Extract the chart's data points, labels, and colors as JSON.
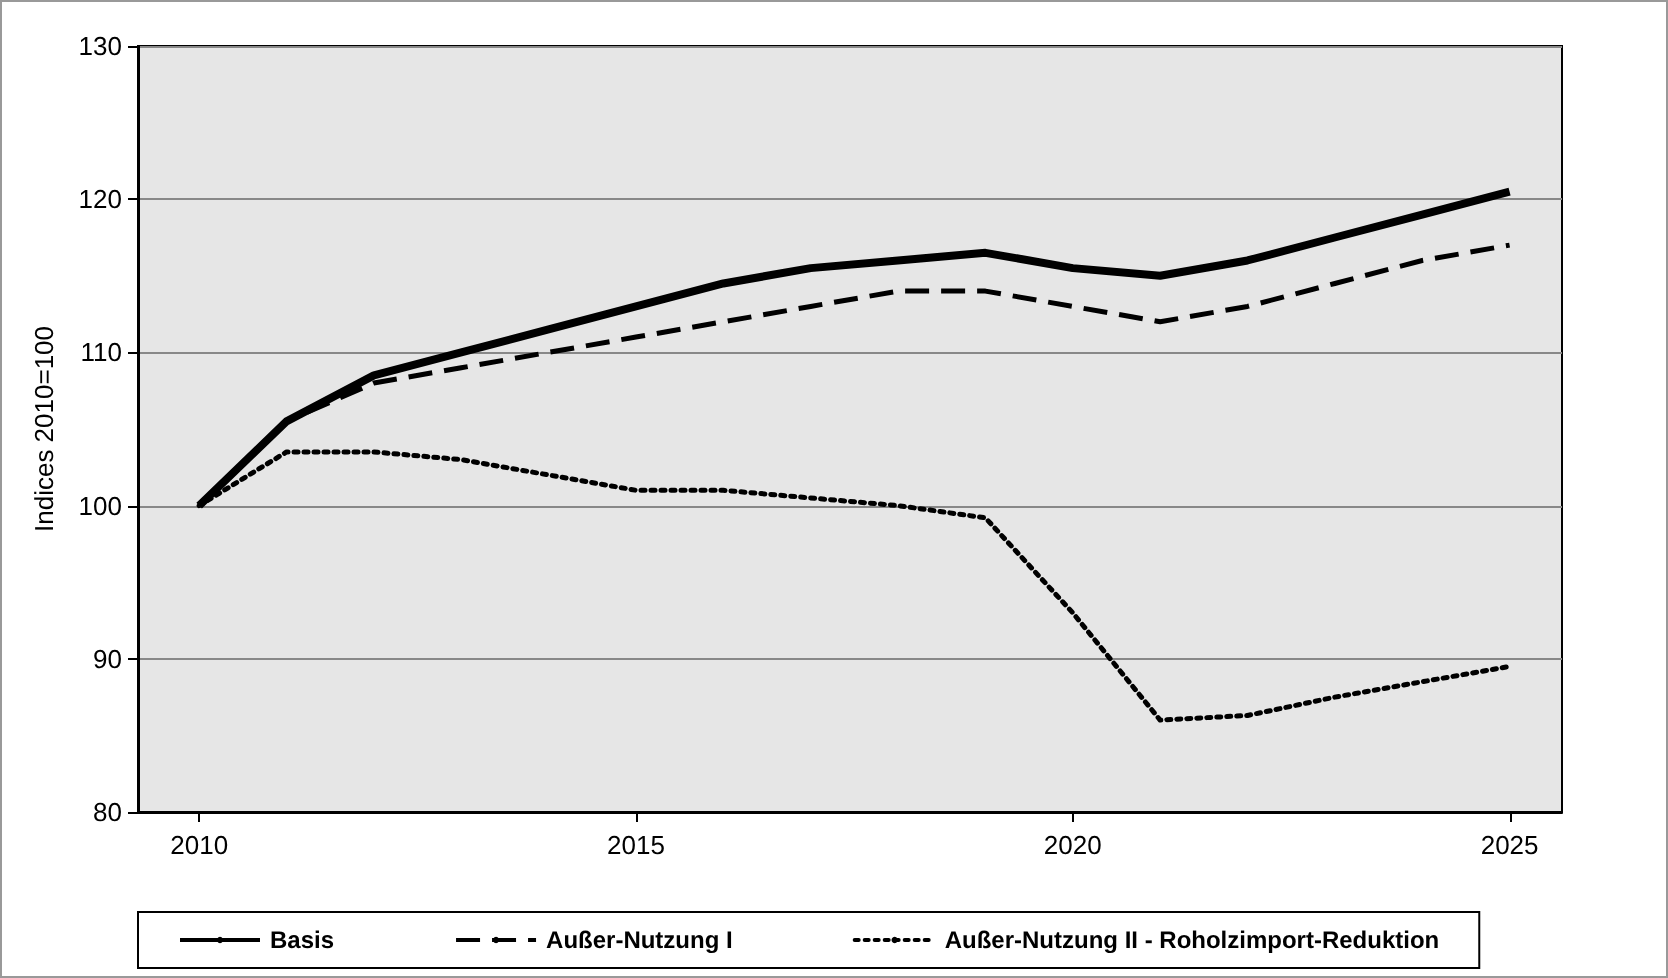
{
  "chart_data": {
    "type": "line",
    "ylabel": "Indices 2010=100",
    "x": [
      2010,
      2011,
      2012,
      2013,
      2014,
      2015,
      2016,
      2017,
      2018,
      2019,
      2020,
      2021,
      2022,
      2023,
      2024,
      2025
    ],
    "series": [
      {
        "name": "Basis",
        "color": "#000000",
        "line_style": "solid",
        "values": [
          100,
          105.5,
          108.5,
          110,
          111.5,
          113,
          114.5,
          115.5,
          116,
          116.5,
          115.5,
          115,
          116,
          117.5,
          119,
          120.5
        ]
      },
      {
        "name": "Außer-Nutzung I",
        "color": "#000000",
        "line_style": "dashed",
        "values": [
          100,
          105.5,
          108,
          109,
          110,
          111,
          112,
          113,
          114,
          114,
          113,
          112,
          113,
          114.5,
          116,
          117
        ]
      },
      {
        "name": "Außer-Nutzung II - Roholzimport-Reduktion",
        "color": "#000000",
        "line_style": "dotted",
        "values": [
          100,
          103.5,
          103.5,
          103,
          102,
          101,
          101,
          100.5,
          100,
          99.2,
          93,
          86,
          86.3,
          87.5,
          88.5,
          89.5
        ]
      }
    ],
    "xlim": [
      2009.3,
      2025.6
    ],
    "xticks": [
      2010,
      2015,
      2020,
      2025
    ],
    "ylim": [
      80,
      130
    ],
    "yticks": [
      80,
      90,
      100,
      110,
      120,
      130
    ],
    "grid": "y",
    "legend": "bottom",
    "marker": "none"
  }
}
